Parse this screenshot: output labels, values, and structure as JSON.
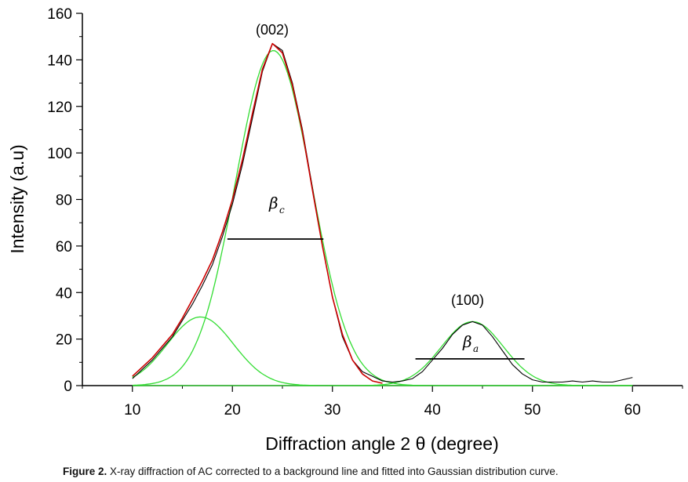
{
  "chart_data": {
    "type": "line",
    "xlabel": "Diffraction angle 2 θ (degree)",
    "ylabel": "Intensity (a.u)",
    "xlim": [
      5,
      65
    ],
    "ylim": [
      0,
      160
    ],
    "x_ticks": [
      10,
      20,
      30,
      40,
      50,
      60
    ],
    "y_ticks": [
      0,
      20,
      40,
      60,
      80,
      100,
      120,
      140,
      160
    ],
    "grid": false,
    "legend": "none",
    "annotations": {
      "peak_002": "(002)",
      "peak_100": "(100)",
      "beta_c_symbol": "β",
      "beta_c_sub": "c",
      "beta_a_symbol": "β",
      "beta_a_sub": "a"
    },
    "fwhm_lines": [
      {
        "x1": 19.5,
        "x2": 29.1,
        "y": 63
      },
      {
        "x1": 38.3,
        "x2": 49.2,
        "y": 11.5
      }
    ],
    "gaussians": [
      {
        "center": 24.1,
        "amplitude": 144,
        "sigma": 3.8
      },
      {
        "center": 16.8,
        "amplitude": 29.5,
        "sigma": 3.3
      },
      {
        "center": 44.0,
        "amplitude": 27.5,
        "sigma": 3.1
      }
    ],
    "series": [
      {
        "color": "#000000",
        "x": [
          10,
          11,
          12,
          13,
          14,
          15,
          16,
          17,
          18,
          19,
          20,
          21,
          22,
          23,
          24,
          25,
          26,
          27,
          28,
          29,
          30,
          31,
          32,
          33,
          34,
          35,
          36,
          37,
          38,
          39,
          40,
          41,
          42,
          43,
          44,
          45,
          46,
          47,
          48,
          49,
          50,
          51,
          52,
          53,
          54,
          55,
          56,
          57,
          58,
          59,
          60
        ],
        "values": [
          3,
          7,
          11,
          16,
          21,
          28,
          35,
          43,
          52,
          64,
          78,
          95,
          115,
          135,
          147,
          144,
          130,
          110,
          85,
          60,
          38,
          21,
          11,
          6,
          4,
          2,
          1.5,
          2,
          3,
          6,
          11,
          16,
          22,
          26,
          27.5,
          26,
          21,
          15,
          9,
          5,
          2.5,
          1.5,
          1.5,
          1.5,
          2,
          1.5,
          2,
          1.5,
          1.5,
          2.5,
          3.5
        ]
      },
      {
        "color": "#cc0000",
        "x": [
          10,
          11,
          12,
          13,
          14,
          15,
          16,
          17,
          18,
          19,
          20,
          21,
          22,
          23,
          24,
          25,
          26,
          27,
          28,
          29,
          30,
          31,
          32,
          33,
          34,
          35
        ],
        "values": [
          4,
          8,
          12,
          17,
          22,
          29,
          37,
          45,
          54,
          66,
          80,
          97,
          117,
          136,
          147,
          143,
          129,
          109,
          84,
          60,
          38,
          22,
          11,
          5,
          2,
          1
        ]
      }
    ],
    "caption": {
      "label": "Figure 2.",
      "text": " X-ray diffraction of AC corrected to a background line and fitted into Gaussian distribution curve."
    }
  }
}
